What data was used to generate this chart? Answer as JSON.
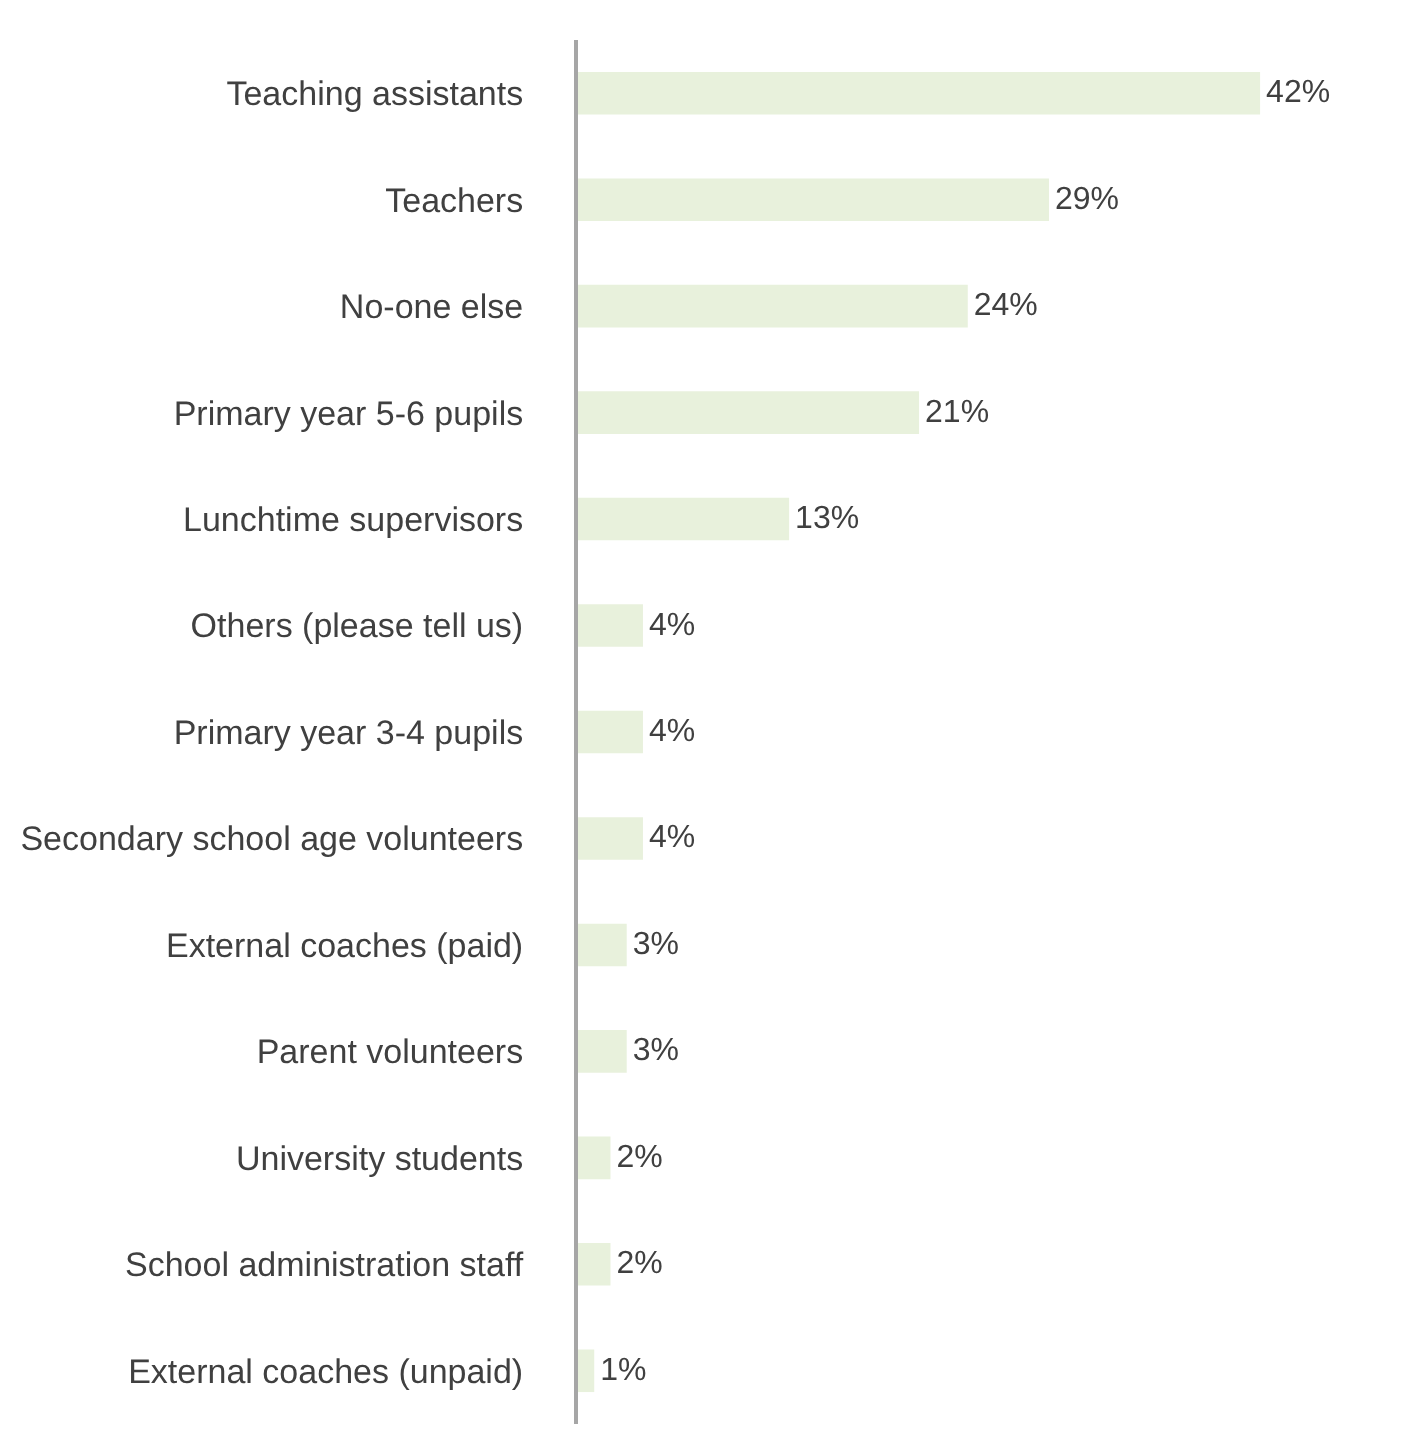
{
  "chart_data": {
    "type": "bar",
    "orientation": "horizontal",
    "categories": [
      "Teaching assistants",
      "Teachers",
      "No-one else",
      "Primary year 5-6 pupils",
      "Lunchtime supervisors",
      "Others (please tell us)",
      "Primary year 3-4 pupils",
      "Secondary school age volunteers",
      "External coaches (paid)",
      "Parent volunteers",
      "University students",
      "School administration staff",
      "External coaches (unpaid)"
    ],
    "values": [
      42,
      29,
      24,
      21,
      13,
      4,
      4,
      4,
      3,
      3,
      2,
      2,
      1
    ],
    "value_labels": [
      "42%",
      "29%",
      "24%",
      "21%",
      "13%",
      "4%",
      "4%",
      "4%",
      "3%",
      "3%",
      "2%",
      "2%",
      "1%"
    ],
    "color": "#e8f1dc"
  }
}
